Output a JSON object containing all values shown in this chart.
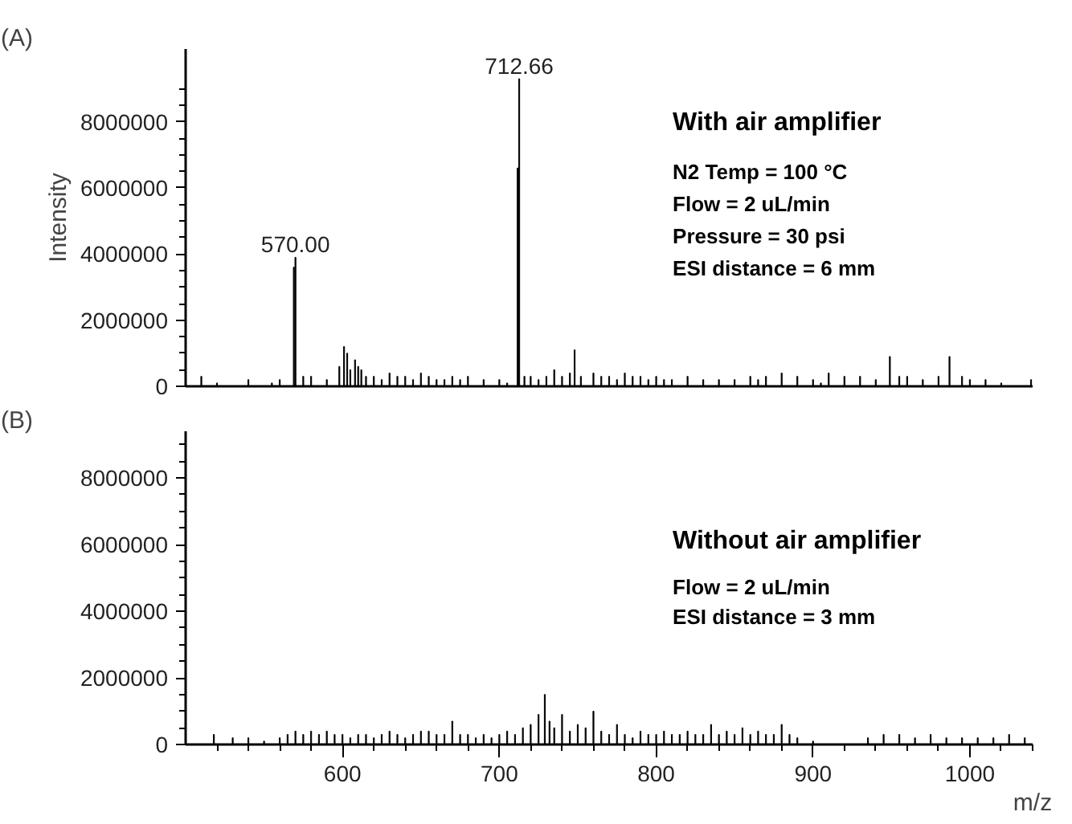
{
  "chart_data": [
    {
      "type": "bar",
      "title": "(A)",
      "ylabel": "Intensity",
      "xlim": [
        500,
        1040
      ],
      "ylim": [
        0,
        10200000
      ],
      "tick_labels": "y",
      "color": "#000000",
      "yticks": [
        0,
        2000000,
        4000000,
        6000000,
        8000000,
        {
          "value": 500000,
          "label": null
        },
        {
          "value": 1000000,
          "label": null
        },
        {
          "value": 1500000,
          "label": null
        },
        {
          "value": 2500000,
          "label": null
        },
        {
          "value": 3000000,
          "label": null
        },
        {
          "value": 3500000,
          "label": null
        },
        {
          "value": 4500000,
          "label": null
        },
        {
          "value": 5000000,
          "label": null
        },
        {
          "value": 5500000,
          "label": null
        },
        {
          "value": 6500000,
          "label": null
        },
        {
          "value": 7000000,
          "label": null
        },
        {
          "value": 7500000,
          "label": null
        },
        {
          "value": 8500000,
          "label": null
        },
        {
          "value": 9000000,
          "label": null
        }
      ],
      "x": [
        510,
        520,
        540,
        555,
        560,
        569,
        570,
        575,
        580,
        590,
        598,
        601,
        603,
        605,
        608,
        610,
        612,
        615,
        620,
        625,
        630,
        635,
        640,
        645,
        650,
        655,
        660,
        665,
        670,
        675,
        680,
        690,
        700,
        705,
        711.7,
        712.66,
        716,
        720,
        725,
        730,
        735,
        740,
        745,
        748,
        752,
        760,
        765,
        770,
        775,
        780,
        785,
        790,
        795,
        800,
        805,
        810,
        820,
        830,
        840,
        850,
        860,
        865,
        870,
        880,
        890,
        900,
        905,
        910,
        920,
        930,
        940,
        949,
        955,
        960,
        970,
        980,
        987,
        995,
        1000,
        1010,
        1020,
        1039
      ],
      "values": [
        300000,
        100000,
        200000,
        100000,
        200000,
        3600000,
        3900000,
        300000,
        300000,
        200000,
        600000,
        1200000,
        1000000,
        500000,
        800000,
        600000,
        500000,
        300000,
        300000,
        200000,
        400000,
        300000,
        300000,
        200000,
        400000,
        300000,
        200000,
        200000,
        300000,
        200000,
        300000,
        200000,
        200000,
        100000,
        6600000,
        9300000,
        300000,
        300000,
        200000,
        300000,
        500000,
        300000,
        400000,
        1100000,
        300000,
        400000,
        300000,
        300000,
        200000,
        400000,
        300000,
        300000,
        200000,
        300000,
        200000,
        200000,
        300000,
        200000,
        200000,
        200000,
        300000,
        200000,
        300000,
        400000,
        300000,
        200000,
        100000,
        400000,
        300000,
        300000,
        200000,
        900000,
        300000,
        300000,
        200000,
        300000,
        900000,
        300000,
        200000,
        200000,
        100000,
        200000
      ],
      "annotations": [
        {
          "text": "570.00",
          "x": 570,
          "y": 3900000
        },
        {
          "text": "712.66",
          "x": 712.66,
          "y": 9300000
        },
        "With air amplifier",
        "N2 Temp = 100 °C",
        "Flow = 2 uL/min",
        "Pressure = 30 psi",
        "ESI distance = 6 mm"
      ]
    },
    {
      "type": "bar",
      "title": "(B)",
      "xlabel": "m/z",
      "xlim": [
        500,
        1040
      ],
      "ylim": [
        0,
        9400000
      ],
      "color": "#000000",
      "xticks": [
        600,
        700,
        800,
        900,
        1000,
        {
          "value": 520,
          "label": null
        },
        {
          "value": 540,
          "label": null
        },
        {
          "value": 560,
          "label": null
        },
        {
          "value": 580,
          "label": null
        },
        {
          "value": 620,
          "label": null
        },
        {
          "value": 640,
          "label": null
        },
        {
          "value": 660,
          "label": null
        },
        {
          "value": 680,
          "label": null
        },
        {
          "value": 720,
          "label": null
        },
        {
          "value": 740,
          "label": null
        },
        {
          "value": 760,
          "label": null
        },
        {
          "value": 780,
          "label": null
        },
        {
          "value": 820,
          "label": null
        },
        {
          "value": 840,
          "label": null
        },
        {
          "value": 860,
          "label": null
        },
        {
          "value": 880,
          "label": null
        },
        {
          "value": 920,
          "label": null
        },
        {
          "value": 940,
          "label": null
        },
        {
          "value": 960,
          "label": null
        },
        {
          "value": 980,
          "label": null
        },
        {
          "value": 1020,
          "label": null
        },
        {
          "value": 1040,
          "label": null
        }
      ],
      "yticks": [
        0,
        2000000,
        4000000,
        6000000,
        8000000,
        {
          "value": 500000,
          "label": null
        },
        {
          "value": 1000000,
          "label": null
        },
        {
          "value": 1500000,
          "label": null
        },
        {
          "value": 2500000,
          "label": null
        },
        {
          "value": 3000000,
          "label": null
        },
        {
          "value": 3500000,
          "label": null
        },
        {
          "value": 4500000,
          "label": null
        },
        {
          "value": 5000000,
          "label": null
        },
        {
          "value": 5500000,
          "label": null
        },
        {
          "value": 6500000,
          "label": null
        },
        {
          "value": 7000000,
          "label": null
        },
        {
          "value": 7500000,
          "label": null
        },
        {
          "value": 8500000,
          "label": null
        },
        {
          "value": 9000000,
          "label": null
        }
      ],
      "x": [
        518,
        530,
        540,
        550,
        560,
        565,
        570,
        575,
        580,
        585,
        590,
        595,
        600,
        605,
        610,
        615,
        620,
        625,
        630,
        635,
        640,
        645,
        650,
        655,
        660,
        665,
        670,
        675,
        680,
        685,
        690,
        695,
        700,
        705,
        710,
        715,
        720,
        725,
        729,
        732,
        735,
        740,
        745,
        750,
        755,
        760,
        765,
        770,
        775,
        780,
        785,
        790,
        795,
        800,
        805,
        810,
        815,
        820,
        825,
        830,
        835,
        840,
        845,
        850,
        855,
        860,
        865,
        870,
        875,
        880,
        885,
        890,
        900,
        935,
        945,
        955,
        965,
        975,
        985,
        995,
        1005,
        1015,
        1025,
        1035
      ],
      "values": [
        300000,
        200000,
        200000,
        100000,
        200000,
        300000,
        400000,
        300000,
        400000,
        300000,
        400000,
        300000,
        300000,
        200000,
        300000,
        300000,
        200000,
        300000,
        400000,
        300000,
        200000,
        300000,
        400000,
        400000,
        300000,
        300000,
        700000,
        300000,
        300000,
        200000,
        300000,
        200000,
        300000,
        400000,
        300000,
        500000,
        600000,
        900000,
        1500000,
        700000,
        500000,
        900000,
        400000,
        600000,
        500000,
        1000000,
        400000,
        300000,
        600000,
        300000,
        200000,
        400000,
        300000,
        300000,
        400000,
        300000,
        300000,
        400000,
        300000,
        300000,
        600000,
        300000,
        400000,
        300000,
        500000,
        300000,
        400000,
        300000,
        300000,
        600000,
        300000,
        200000,
        100000,
        200000,
        300000,
        300000,
        200000,
        300000,
        200000,
        200000,
        200000,
        200000,
        300000,
        200000
      ],
      "annotations": [
        "Without air amplifier",
        "Flow = 2 uL/min",
        "ESI distance = 3 mm"
      ]
    }
  ]
}
